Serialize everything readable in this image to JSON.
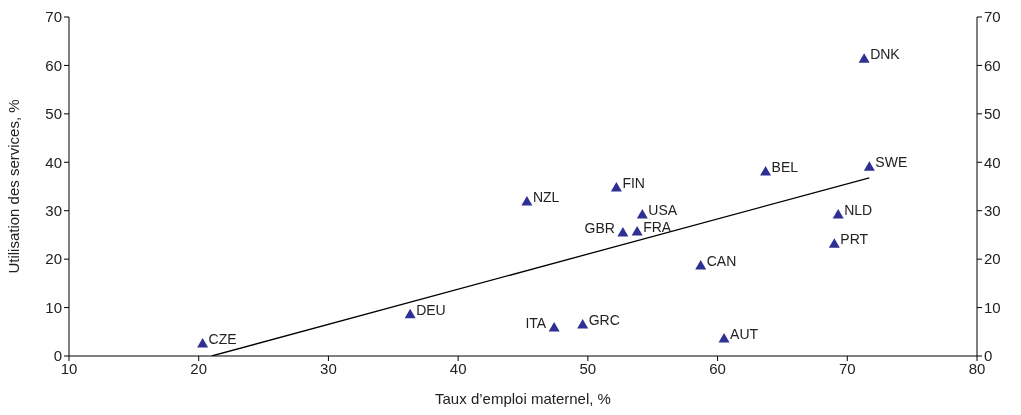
{
  "chart_data": {
    "type": "scatter",
    "xlabel": "Taux d’emploi maternel, %",
    "ylabel": "Utilisation des services, %",
    "xlim": [
      10,
      80
    ],
    "xticks": [
      10,
      20,
      30,
      40,
      50,
      60,
      70,
      80
    ],
    "ylim": [
      0,
      70
    ],
    "yticks": [
      0,
      10,
      20,
      30,
      40,
      50,
      60,
      70
    ],
    "y2lim": [
      0,
      70
    ],
    "y2ticks": [
      0,
      10,
      20,
      30,
      40,
      50,
      60,
      70
    ],
    "grid": false,
    "legend": false,
    "marker": "triangle",
    "series": [
      {
        "color": "#2e3192",
        "x": [
          20.3,
          36.3,
          47.4,
          49.6,
          60.5,
          58.7,
          69.0,
          69.3,
          71.7,
          63.7,
          71.3,
          52.2,
          54.2,
          53.8,
          52.7,
          45.3
        ],
        "values": [
          2.7,
          8.7,
          6.0,
          6.6,
          3.7,
          18.8,
          23.3,
          29.3,
          39.2,
          38.2,
          61.5,
          34.9,
          29.3,
          25.8,
          25.6,
          32.0
        ]
      },
      {
        "type": "line",
        "marker": "none",
        "color": "#000000",
        "x": [
          21,
          71.7
        ],
        "values": [
          0,
          36.8
        ]
      }
    ],
    "annotations": [
      {
        "text": "CZE",
        "x": 20.3,
        "y": 2.7
      },
      {
        "text": "DEU",
        "x": 36.3,
        "y": 8.7
      },
      {
        "text": "ITA",
        "x": 47.4,
        "y": 6.0
      },
      {
        "text": "GRC",
        "x": 49.6,
        "y": 6.6
      },
      {
        "text": "AUT",
        "x": 60.5,
        "y": 3.7
      },
      {
        "text": "CAN",
        "x": 58.7,
        "y": 18.8
      },
      {
        "text": "PRT",
        "x": 69.0,
        "y": 23.3
      },
      {
        "text": "NLD",
        "x": 69.3,
        "y": 29.3
      },
      {
        "text": "SWE",
        "x": 71.7,
        "y": 39.2
      },
      {
        "text": "BEL",
        "x": 63.7,
        "y": 38.2
      },
      {
        "text": "DNK",
        "x": 71.3,
        "y": 61.5
      },
      {
        "text": "FIN",
        "x": 52.2,
        "y": 34.9
      },
      {
        "text": "USA",
        "x": 54.2,
        "y": 29.3
      },
      {
        "text": "FRA",
        "x": 53.8,
        "y": 25.8
      },
      {
        "text": "GBR",
        "x": 52.7,
        "y": 25.6
      },
      {
        "text": "NZL",
        "x": 45.3,
        "y": 32.0
      }
    ]
  }
}
